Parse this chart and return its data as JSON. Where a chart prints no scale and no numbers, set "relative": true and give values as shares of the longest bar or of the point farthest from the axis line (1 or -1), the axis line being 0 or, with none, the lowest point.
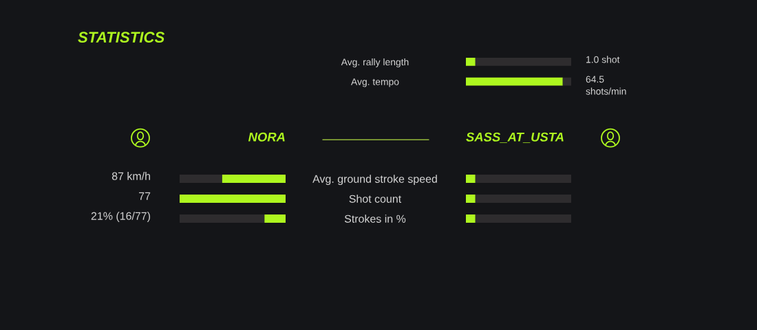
{
  "chart_data": [
    {
      "type": "bar",
      "orientation": "horizontal",
      "stacked": true,
      "relative": true,
      "categories": [
        "Avg. rally length",
        "Avg. tempo"
      ],
      "series": [
        {
          "color": "#aef71f",
          "values": [
            0.09,
            0.92
          ]
        },
        {
          "color": "#2e2c2e",
          "values": [
            0.91,
            0.08
          ]
        }
      ],
      "annotations": [
        "STATISTICS",
        "1.0 shot",
        "64.5\nshots/min"
      ]
    },
    {
      "type": "bar",
      "title": "NORA",
      "orientation": "horizontal",
      "stacked": true,
      "relative": true,
      "categories": [
        null,
        null,
        null
      ],
      "series": [
        {
          "color": "#aef71f",
          "values": [
            -0.6,
            -1,
            -0.2
          ]
        },
        {
          "color": "#2e2c2e",
          "values": [
            -0.4,
            null,
            -0.8
          ]
        }
      ],
      "annotations": [
        "87 km/h",
        "77",
        "21% (16/77)"
      ]
    },
    {
      "type": "bar",
      "title": "SASS_AT_USTA",
      "orientation": "horizontal",
      "stacked": true,
      "relative": true,
      "categories": [
        "Avg. ground stroke speed",
        "Shot count",
        "Strokes in %"
      ],
      "series": [
        {
          "color": "#aef71f",
          "values": [
            0.09,
            0.09,
            0.09
          ]
        },
        {
          "color": "#2e2c2e",
          "values": [
            0.91,
            0.91,
            0.91
          ]
        }
      ]
    }
  ]
}
